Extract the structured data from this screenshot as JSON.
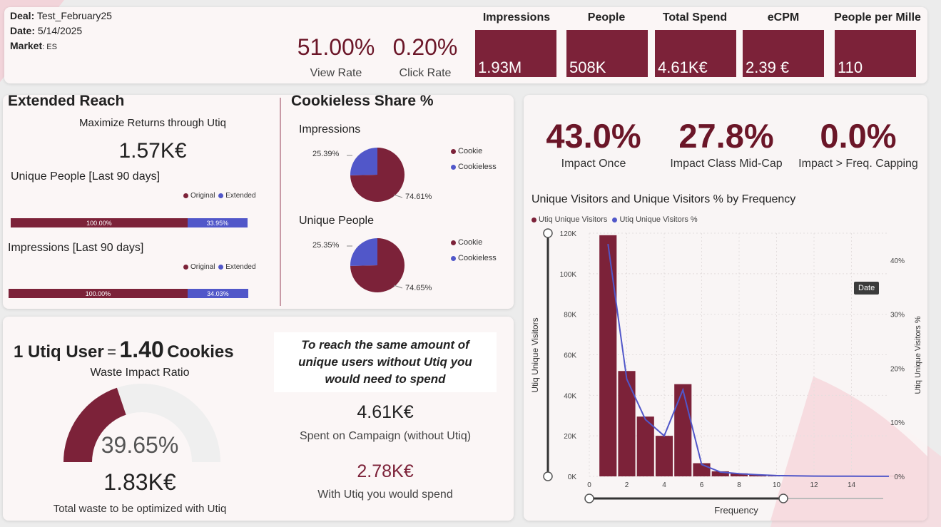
{
  "header": {
    "deal_label": "Deal:",
    "deal_value": "Test_February25",
    "date_label": "Date:",
    "date_value": "5/14/2025",
    "market_label": "Market",
    "market_value": ": ES",
    "view_rate_value": "51.00%",
    "view_rate_label": "View Rate",
    "click_rate_value": "0.20%",
    "click_rate_label": "Click Rate",
    "kpis": [
      {
        "title": "Impressions",
        "value": "1.93M"
      },
      {
        "title": "People",
        "value": "508K"
      },
      {
        "title": "Total Spend",
        "value": "4.61K€"
      },
      {
        "title": "eCPM",
        "value": "2.39 €"
      },
      {
        "title": "People per Mille",
        "value": "110"
      }
    ]
  },
  "extended_reach": {
    "title": "Extended Reach",
    "subtitle": "Maximize Returns through Utiq",
    "value": "1.57K€",
    "unique_people_title": "Unique People [Last 90 days]",
    "impressions_title": "Impressions [Last 90 days]",
    "legend_original": "Original",
    "legend_extended": "Extended",
    "unique_people_bar": {
      "original": "100.00%",
      "extended": "33.95%",
      "extended_fraction": 0.3395
    },
    "impressions_bar": {
      "original": "100.00%",
      "extended": "34.03%",
      "extended_fraction": 0.3403
    }
  },
  "cookieless": {
    "title": "Cookieless Share %",
    "legend_cookie": "Cookie",
    "legend_cookieless": "Cookieless",
    "impressions_title": "Impressions",
    "impressions_cookieless_label": "25.39%",
    "impressions_cookie_label": "74.61%",
    "impressions_cookieless_pct": 25.39,
    "unique_people_title": "Unique People",
    "unique_people_cookieless_label": "25.35%",
    "unique_people_cookie_label": "74.65%",
    "unique_people_cookieless_pct": 25.35
  },
  "waste": {
    "ratio_prefix": "1 Utiq User",
    "ratio_eq": "=",
    "ratio_value": "1.40",
    "ratio_suffix": "Cookies",
    "waste_label": "Waste Impact Ratio",
    "gauge_value": "39.65%",
    "gauge_fraction": 0.3965,
    "total_waste_value": "1.83K€",
    "total_waste_label": "Total waste to be optimized with Utiq",
    "reach_note": "To reach the same amount of unique users without Utiq you would need to spend",
    "spent_value": "4.61K€",
    "spent_label": "Spent on Campaign (without Utiq)",
    "utiq_value": "2.78K€",
    "utiq_label": "With Utiq you would spend"
  },
  "impact": {
    "once_value": "43.0%",
    "once_label": "Impact Once",
    "midcap_value": "27.8%",
    "midcap_label": "Impact Class Mid-Cap",
    "freq_value": "0.0%",
    "freq_label": "Impact > Freq. Capping"
  },
  "colors": {
    "maroon": "#7c2239",
    "blue": "#5157c9",
    "dark_maroon": "#6b1628"
  },
  "chart_data": {
    "type": "bar",
    "title": "Unique Visitors and Unique Visitors % by Frequency",
    "xlabel": "Frequency",
    "ylabel": "Utiq Unique Visitors",
    "y2label": "Utiq Unique Visitors %",
    "legend": [
      "Utiq Unique Visitors",
      "Utiq Unique Visitors %"
    ],
    "tooltip_label": "Date",
    "xlim": [
      0,
      16
    ],
    "ylim": [
      0,
      120000
    ],
    "y2lim": [
      0,
      0.45
    ],
    "x_ticks": [
      "0",
      "2",
      "4",
      "6",
      "8",
      "10",
      "12",
      "14"
    ],
    "x_tick_values": [
      0,
      2,
      4,
      6,
      8,
      10,
      12,
      14
    ],
    "y_ticks": [
      "0K",
      "20K",
      "40K",
      "60K",
      "80K",
      "100K",
      "120K"
    ],
    "y_tick_values": [
      0,
      20000,
      40000,
      60000,
      80000,
      100000,
      120000
    ],
    "y2_ticks": [
      "0%",
      "10%",
      "20%",
      "30%",
      "40%"
    ],
    "y2_tick_values": [
      0,
      0.1,
      0.2,
      0.3,
      0.4
    ],
    "x": [
      1,
      2,
      3,
      4,
      5,
      6,
      7,
      8,
      9,
      10,
      11,
      12,
      13,
      14,
      15,
      16
    ],
    "series": [
      {
        "name": "Utiq Unique Visitors",
        "kind": "bar",
        "values": [
          119000,
          52000,
          29500,
          20000,
          45500,
          6500,
          2500,
          1500,
          800,
          400,
          200,
          150,
          100,
          80,
          60,
          50
        ]
      },
      {
        "name": "Utiq Unique Visitors %",
        "kind": "line",
        "values": [
          0.43,
          0.18,
          0.105,
          0.075,
          0.16,
          0.022,
          0.008,
          0.005,
          0.003,
          0.0015,
          0.001,
          0.0005,
          0.0004,
          0.0003,
          0.0002,
          0.0002
        ]
      }
    ]
  }
}
